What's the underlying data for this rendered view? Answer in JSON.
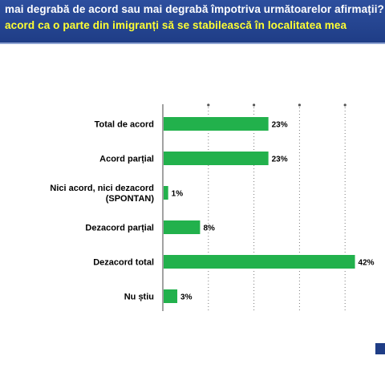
{
  "header": {
    "line1": "mai degrabă de acord sau mai degrabă împotriva următoarelor afirmații?",
    "line2": "acord ca o parte din imigranți să se stabilească în localitatea mea"
  },
  "colors": {
    "banner": "#1f3d86",
    "bar": "#22b14c",
    "line2_text": "#ffff33"
  },
  "chart_data": {
    "type": "bar",
    "orientation": "horizontal",
    "categories": [
      "Total de acord",
      "Acord parțial",
      "Nici acord, nici dezacord\n(SPONTAN)",
      "Dezacord parțial",
      "Dezacord total",
      "Nu știu"
    ],
    "values": [
      23,
      23,
      1,
      8,
      42,
      3
    ],
    "value_labels": [
      "23%",
      "23%",
      "1%",
      "8%",
      "42%",
      "3%"
    ],
    "xlim": [
      0,
      50
    ],
    "grid": "vertical dotted lines",
    "legend": "none"
  }
}
